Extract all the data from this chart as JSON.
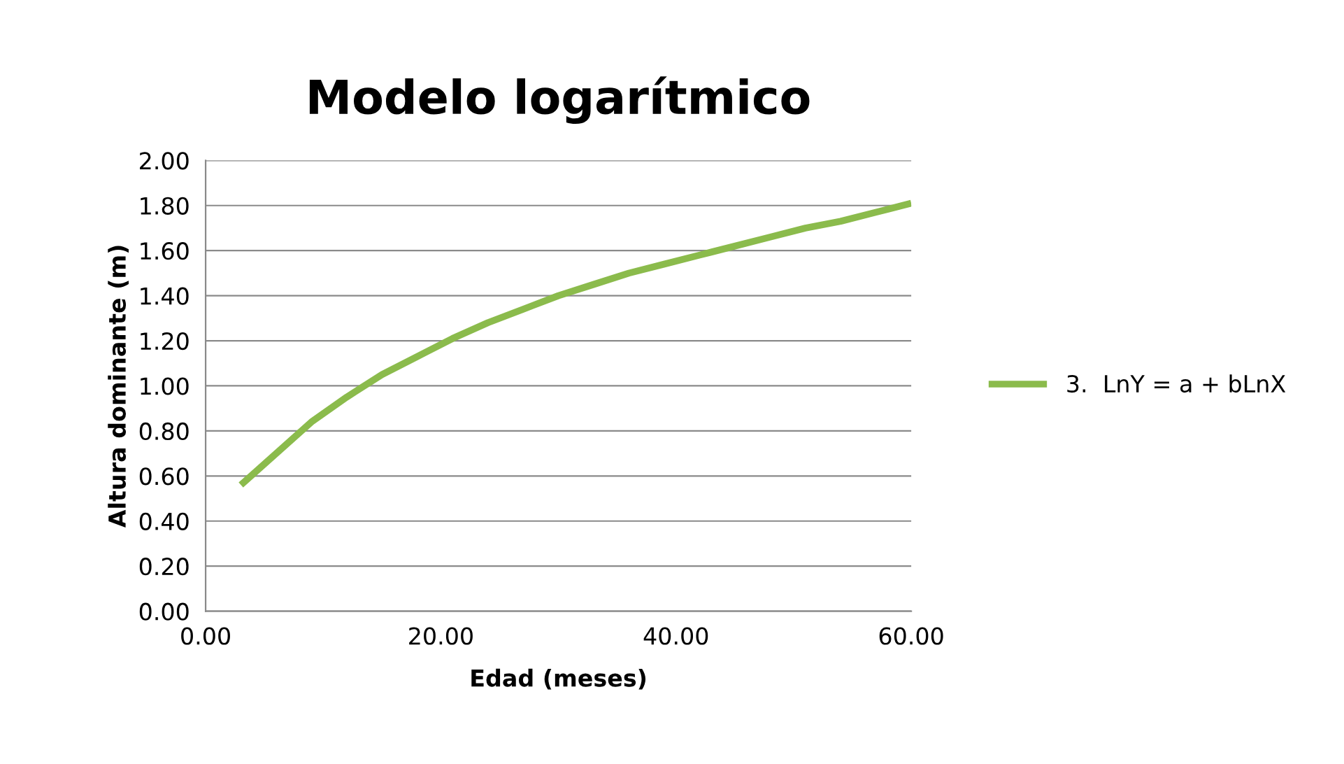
{
  "chart_data": {
    "type": "line",
    "title": "Modelo logarítmico",
    "xlabel": "Edad (meses)",
    "ylabel": "Altura dominante (m)",
    "x": [
      3,
      6,
      9,
      12,
      15,
      18,
      21,
      24,
      27,
      30,
      33,
      36,
      39,
      42,
      45,
      48,
      51,
      54,
      57,
      60
    ],
    "series": [
      {
        "name": "3.  LnY = a + bLnX",
        "color": "#8bbb4c",
        "values": [
          0.56,
          0.7,
          0.84,
          0.95,
          1.05,
          1.13,
          1.21,
          1.28,
          1.34,
          1.4,
          1.45,
          1.5,
          1.54,
          1.58,
          1.62,
          1.66,
          1.7,
          1.73,
          1.77,
          1.81
        ]
      }
    ],
    "xlim": [
      0,
      60
    ],
    "xticks": [
      {
        "value": 0,
        "label": "0.00"
      },
      {
        "value": 20,
        "label": "20.00"
      },
      {
        "value": 40,
        "label": "40.00"
      },
      {
        "value": 60,
        "label": "60.00"
      }
    ],
    "ylim": [
      0,
      2
    ],
    "yticks": [
      {
        "value": 0,
        "label": "0.00"
      },
      {
        "value": 0.2,
        "label": "0.20"
      },
      {
        "value": 0.4,
        "label": "0.40"
      },
      {
        "value": 0.6,
        "label": "0.60"
      },
      {
        "value": 0.8,
        "label": "0.80"
      },
      {
        "value": 1.0,
        "label": "1.00"
      },
      {
        "value": 1.2,
        "label": "1.20"
      },
      {
        "value": 1.4,
        "label": "1.40"
      },
      {
        "value": 1.6,
        "label": "1.60"
      },
      {
        "value": 1.8,
        "label": "1.80"
      },
      {
        "value": 2.0,
        "label": "2.00"
      }
    ],
    "grid": "y",
    "legend": "right",
    "marker": "none",
    "line_style": "solid"
  }
}
